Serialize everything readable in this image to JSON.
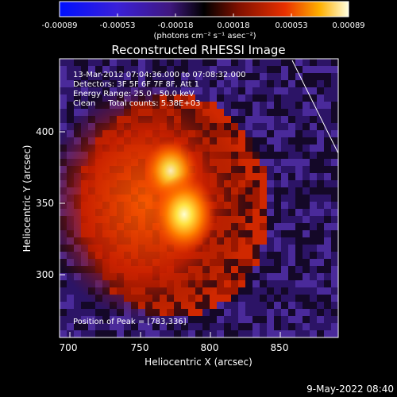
{
  "colorbar": {
    "ticks": [
      "-0.00089",
      "-0.00053",
      "-0.00018",
      "0.00018",
      "0.00053",
      "0.00089"
    ],
    "units": "(photons cm⁻² s⁻¹ asec⁻²)"
  },
  "title": "Reconstructed RHESSI Image",
  "info": {
    "time_range": "13-Mar-2012 07:04:36.000 to 07:08:32.000",
    "detectors": "Detectors: 3F 5F 6F 7F 8F, Att 1",
    "energy": "Energy Range: 25.0 - 50.0 keV",
    "clean": "Clean     Total counts: 5.38E+03",
    "peak": "Position of Peak = [783,336]"
  },
  "axes": {
    "xlabel": "Heliocentric X (arcsec)",
    "ylabel": "Heliocentric Y (arcsec)",
    "xticks": [
      "700",
      "750",
      "800",
      "850"
    ],
    "yticks": [
      "400",
      "350",
      "300"
    ]
  },
  "timestamp": "9-May-2022 08:40",
  "colors": {
    "frame": "#ffffff",
    "background": "#000000"
  }
}
